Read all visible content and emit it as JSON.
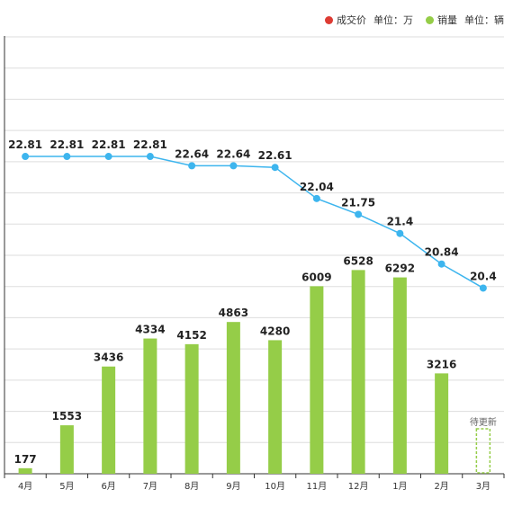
{
  "chart_data": {
    "type": "bar",
    "categories": [
      "4月",
      "5月",
      "6月",
      "7月",
      "8月",
      "9月",
      "10月",
      "11月",
      "12月",
      "1月",
      "2月",
      "3月"
    ],
    "series": [
      {
        "name": "销量",
        "kind": "bar",
        "unit_label": "单位：辆",
        "color": "#95cd48",
        "values": [
          177,
          1553,
          3436,
          4334,
          4152,
          4863,
          4280,
          6009,
          6528,
          6292,
          3216,
          null
        ]
      },
      {
        "name": "成交价",
        "kind": "line",
        "unit_label": "单位：万",
        "color": "#3db5ee",
        "values": [
          22.81,
          22.81,
          22.81,
          22.81,
          22.64,
          22.64,
          22.61,
          22.04,
          21.75,
          21.4,
          20.84,
          20.4
        ]
      }
    ],
    "pending": {
      "category": "3月",
      "label": "待更新",
      "color": "#95cd48"
    },
    "legend_position": "top-right",
    "legend_dot_colors": {
      "price": "#dd3b33",
      "sales": "#95cd48"
    },
    "bar_ylim": [
      0,
      14000
    ],
    "line_ylim": [
      17,
      25
    ],
    "grid": true,
    "grid_color": "#dddddd",
    "axis_color": "#333333",
    "label_color": "#222222"
  }
}
